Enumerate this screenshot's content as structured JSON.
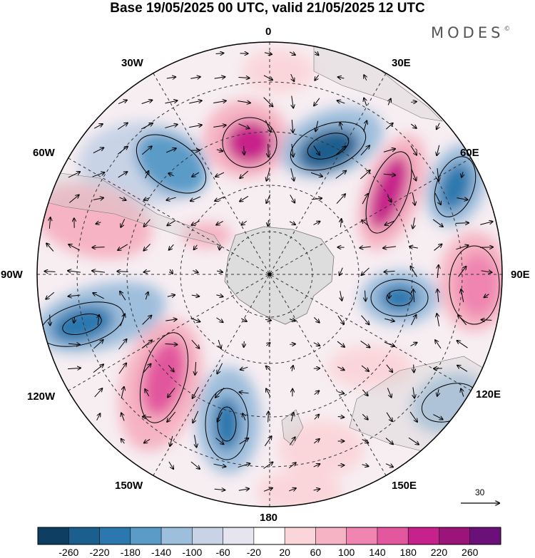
{
  "title": "Base 19/05/2025 00 UTC, valid 21/05/2025 12 UTC",
  "brand": "MODES",
  "brand_mark": "©",
  "longitude_labels": {
    "lon_0": "0",
    "lon_30e": "30E",
    "lon_60e": "60E",
    "lon_90e": "90E",
    "lon_120e": "120E",
    "lon_150e": "150E",
    "lon_180": "180",
    "lon_150w": "150W",
    "lon_120w": "120W",
    "lon_90w": "90W",
    "lon_60w": "60W",
    "lon_30w": "30W"
  },
  "vector_reference": {
    "value": "30"
  },
  "colorbar": {
    "ticks": [
      "-260",
      "-220",
      "-180",
      "-140",
      "-100",
      "-60",
      "-20",
      "20",
      "60",
      "100",
      "140",
      "180",
      "220",
      "260"
    ],
    "colors": [
      "#0e3f63",
      "#1b5f8e",
      "#2c78ae",
      "#5a9bc8",
      "#9dbedc",
      "#c8d3e6",
      "#e6e4ef",
      "#ffffff",
      "#fad6da",
      "#f5b3c3",
      "#ef85b0",
      "#e2579e",
      "#c7218b",
      "#9c137a",
      "#6b1079"
    ]
  }
}
